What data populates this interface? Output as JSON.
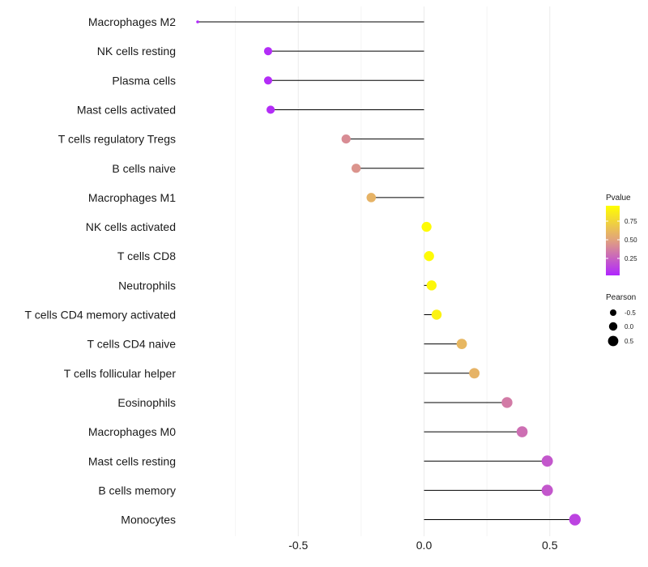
{
  "chart_data": {
    "type": "lollipop",
    "title": "",
    "xlabel": "",
    "ylabel": "",
    "xlim": [
      -0.95,
      0.65
    ],
    "x_ticks": [
      -0.5,
      0.0,
      0.5
    ],
    "x_tick_labels": [
      "-0.5",
      "0.0",
      "0.5"
    ],
    "grid": true,
    "categories": [
      "Macrophages M2",
      "NK cells resting",
      "Plasma cells",
      "Mast cells activated",
      "T cells regulatory  Tregs",
      "B cells naive",
      "Macrophages M1",
      "NK cells activated",
      "T cells CD8",
      "Neutrophils",
      "T cells CD4 memory activated",
      "T cells CD4 naive",
      "T cells follicular helper",
      "Eosinophils",
      "Macrophages M0",
      "Mast cells resting",
      "B cells memory",
      "Monocytes"
    ],
    "pearson": [
      -0.9,
      -0.62,
      -0.62,
      -0.61,
      -0.31,
      -0.27,
      -0.21,
      0.01,
      0.02,
      0.03,
      0.05,
      0.15,
      0.2,
      0.33,
      0.39,
      0.49,
      0.49,
      0.6
    ],
    "pvalue": [
      0.01,
      0.03,
      0.03,
      0.03,
      0.42,
      0.45,
      0.6,
      0.98,
      0.98,
      0.96,
      0.93,
      0.62,
      0.6,
      0.35,
      0.3,
      0.2,
      0.2,
      0.12
    ],
    "color_legend": {
      "title": "Pvalue",
      "ticks": [
        "0.75",
        "0.50",
        "0.25"
      ],
      "low_color": "#b026ff",
      "mid_color": "#e0a080",
      "high_color": "#ffff00"
    },
    "size_legend": {
      "title": "Pearson",
      "labels": [
        "-0.5",
        "0.0",
        "0.5"
      ]
    }
  }
}
